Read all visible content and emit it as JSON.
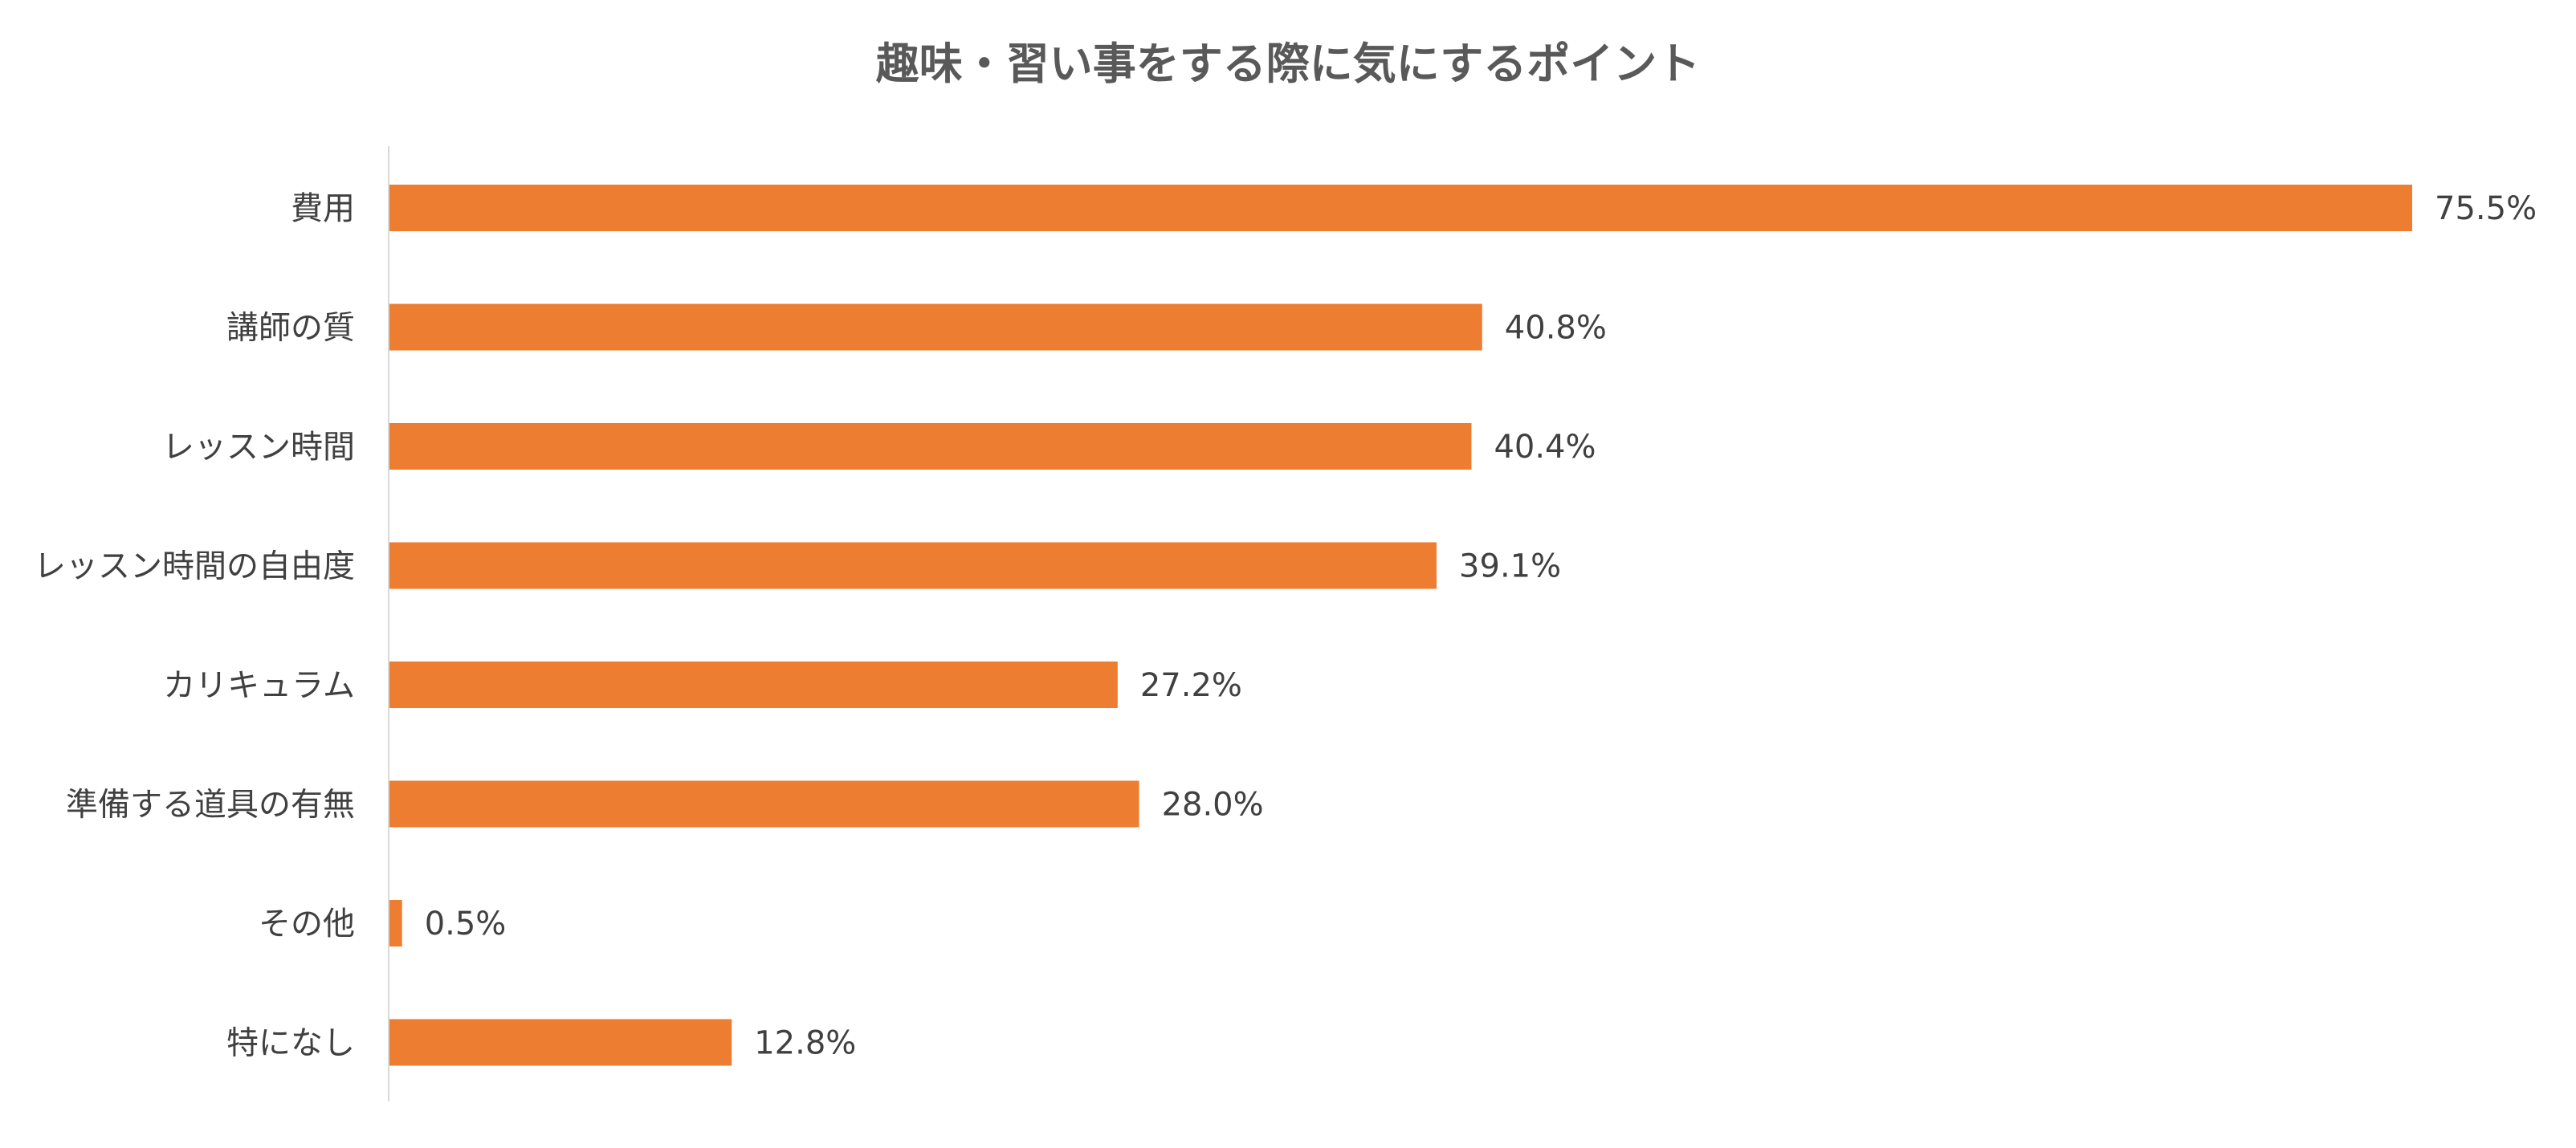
{
  "chart_data": {
    "type": "bar",
    "orientation": "horizontal",
    "title": "趣味・習い事をする際に気にするポイント",
    "xlabel": "",
    "ylabel": "",
    "categories": [
      "費用",
      "講師の質",
      "レッスン時間",
      "レッスン時間の自由度",
      "カリキュラム",
      "準備する道具の有無",
      "その他",
      "特になし"
    ],
    "values": [
      75.5,
      40.8,
      40.4,
      39.1,
      27.2,
      28.0,
      0.5,
      12.8
    ],
    "value_labels": [
      "75.5%",
      "40.8%",
      "40.4%",
      "39.1%",
      "27.2%",
      "28.0%",
      "0.5%",
      "12.8%"
    ],
    "xlim": [
      0,
      75.5
    ],
    "grid": false,
    "legend": "none",
    "bar_color": "#ED7D31",
    "axis_color": "#D9D9D9"
  }
}
